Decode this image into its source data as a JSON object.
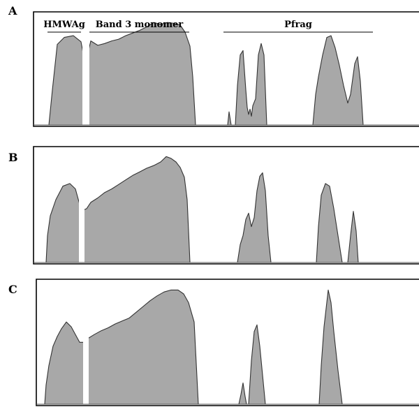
{
  "chart_data": [
    {
      "type": "area",
      "panel_label": "A",
      "annotations": [
        {
          "text": "HMWAg",
          "start_x": 68,
          "end_x": 116
        },
        {
          "text": "Band 3 monomer",
          "start_x": 128,
          "end_x": 271
        },
        {
          "text": "Pfrag",
          "start_x": 320,
          "end_x": 534
        }
      ],
      "y_range": [
        0,
        120
      ],
      "profile": [
        [
          70,
          0
        ],
        [
          75,
          40
        ],
        [
          82,
          92
        ],
        [
          92,
          100
        ],
        [
          105,
          102
        ],
        [
          116,
          95
        ],
        [
          120,
          78
        ],
        [
          125,
          79
        ],
        [
          130,
          96
        ],
        [
          140,
          91
        ],
        [
          150,
          93
        ],
        [
          160,
          96
        ],
        [
          170,
          98
        ],
        [
          180,
          102
        ],
        [
          190,
          105
        ],
        [
          200,
          108
        ],
        [
          210,
          112
        ],
        [
          220,
          117
        ],
        [
          230,
          115
        ],
        [
          240,
          117
        ],
        [
          250,
          116
        ],
        [
          258,
          114
        ],
        [
          265,
          106
        ],
        [
          272,
          90
        ],
        [
          276,
          55
        ],
        [
          280,
          0
        ],
        [
          326,
          0
        ],
        [
          328,
          15
        ],
        [
          331,
          0
        ],
        [
          337,
          0
        ],
        [
          340,
          45
        ],
        [
          344,
          80
        ],
        [
          348,
          85
        ],
        [
          352,
          40
        ],
        [
          354,
          20
        ],
        [
          356,
          12
        ],
        [
          358,
          18
        ],
        [
          360,
          10
        ],
        [
          362,
          22
        ],
        [
          366,
          30
        ],
        [
          370,
          80
        ],
        [
          374,
          93
        ],
        [
          378,
          80
        ],
        [
          382,
          0
        ],
        [
          448,
          0
        ],
        [
          452,
          35
        ],
        [
          456,
          55
        ],
        [
          462,
          80
        ],
        [
          468,
          100
        ],
        [
          474,
          102
        ],
        [
          480,
          88
        ],
        [
          486,
          68
        ],
        [
          492,
          45
        ],
        [
          498,
          25
        ],
        [
          502,
          35
        ],
        [
          508,
          70
        ],
        [
          512,
          78
        ],
        [
          516,
          50
        ],
        [
          520,
          0
        ]
      ],
      "gaps": [
        [
          118,
          128
        ]
      ]
    },
    {
      "type": "area",
      "panel_label": "B",
      "annotations": [],
      "y_range": [
        0,
        120
      ],
      "profile": [
        [
          66,
          0
        ],
        [
          68,
          30
        ],
        [
          72,
          52
        ],
        [
          80,
          70
        ],
        [
          90,
          85
        ],
        [
          100,
          88
        ],
        [
          108,
          82
        ],
        [
          114,
          65
        ],
        [
          118,
          58
        ],
        [
          124,
          60
        ],
        [
          130,
          67
        ],
        [
          140,
          72
        ],
        [
          150,
          78
        ],
        [
          160,
          82
        ],
        [
          170,
          87
        ],
        [
          180,
          92
        ],
        [
          190,
          97
        ],
        [
          200,
          101
        ],
        [
          210,
          105
        ],
        [
          220,
          108
        ],
        [
          230,
          112
        ],
        [
          238,
          118
        ],
        [
          245,
          116
        ],
        [
          252,
          112
        ],
        [
          258,
          106
        ],
        [
          264,
          95
        ],
        [
          268,
          70
        ],
        [
          272,
          0
        ],
        [
          340,
          0
        ],
        [
          344,
          20
        ],
        [
          348,
          30
        ],
        [
          352,
          48
        ],
        [
          356,
          55
        ],
        [
          360,
          40
        ],
        [
          364,
          50
        ],
        [
          368,
          80
        ],
        [
          372,
          96
        ],
        [
          376,
          100
        ],
        [
          380,
          80
        ],
        [
          384,
          30
        ],
        [
          388,
          0
        ],
        [
          453,
          0
        ],
        [
          456,
          40
        ],
        [
          460,
          75
        ],
        [
          466,
          88
        ],
        [
          472,
          85
        ],
        [
          478,
          60
        ],
        [
          484,
          30
        ],
        [
          490,
          0
        ],
        [
          498,
          0
        ],
        [
          502,
          30
        ],
        [
          506,
          57
        ],
        [
          510,
          35
        ],
        [
          513,
          0
        ]
      ],
      "gaps": [
        [
          113,
          121
        ]
      ]
    },
    {
      "type": "area",
      "panel_label": "C",
      "annotations": [],
      "y_range": [
        0,
        120
      ],
      "profile": [
        [
          64,
          0
        ],
        [
          66,
          20
        ],
        [
          70,
          40
        ],
        [
          76,
          60
        ],
        [
          82,
          70
        ],
        [
          88,
          78
        ],
        [
          95,
          85
        ],
        [
          102,
          80
        ],
        [
          108,
          72
        ],
        [
          114,
          64
        ],
        [
          120,
          64
        ],
        [
          126,
          68
        ],
        [
          135,
          72
        ],
        [
          145,
          76
        ],
        [
          155,
          79
        ],
        [
          165,
          83
        ],
        [
          175,
          86
        ],
        [
          185,
          89
        ],
        [
          195,
          95
        ],
        [
          205,
          101
        ],
        [
          215,
          107
        ],
        [
          225,
          112
        ],
        [
          235,
          116
        ],
        [
          245,
          118
        ],
        [
          255,
          118
        ],
        [
          263,
          114
        ],
        [
          270,
          105
        ],
        [
          278,
          85
        ],
        [
          284,
          0
        ],
        [
          342,
          0
        ],
        [
          345,
          10
        ],
        [
          348,
          22
        ],
        [
          351,
          8
        ],
        [
          353,
          0
        ],
        [
          356,
          0
        ],
        [
          360,
          45
        ],
        [
          364,
          75
        ],
        [
          368,
          82
        ],
        [
          372,
          60
        ],
        [
          376,
          30
        ],
        [
          380,
          0
        ],
        [
          457,
          0
        ],
        [
          460,
          40
        ],
        [
          464,
          80
        ],
        [
          470,
          118
        ],
        [
          474,
          105
        ],
        [
          478,
          75
        ],
        [
          484,
          35
        ],
        [
          490,
          0
        ]
      ],
      "gaps": [
        [
          119,
          127
        ]
      ]
    }
  ]
}
